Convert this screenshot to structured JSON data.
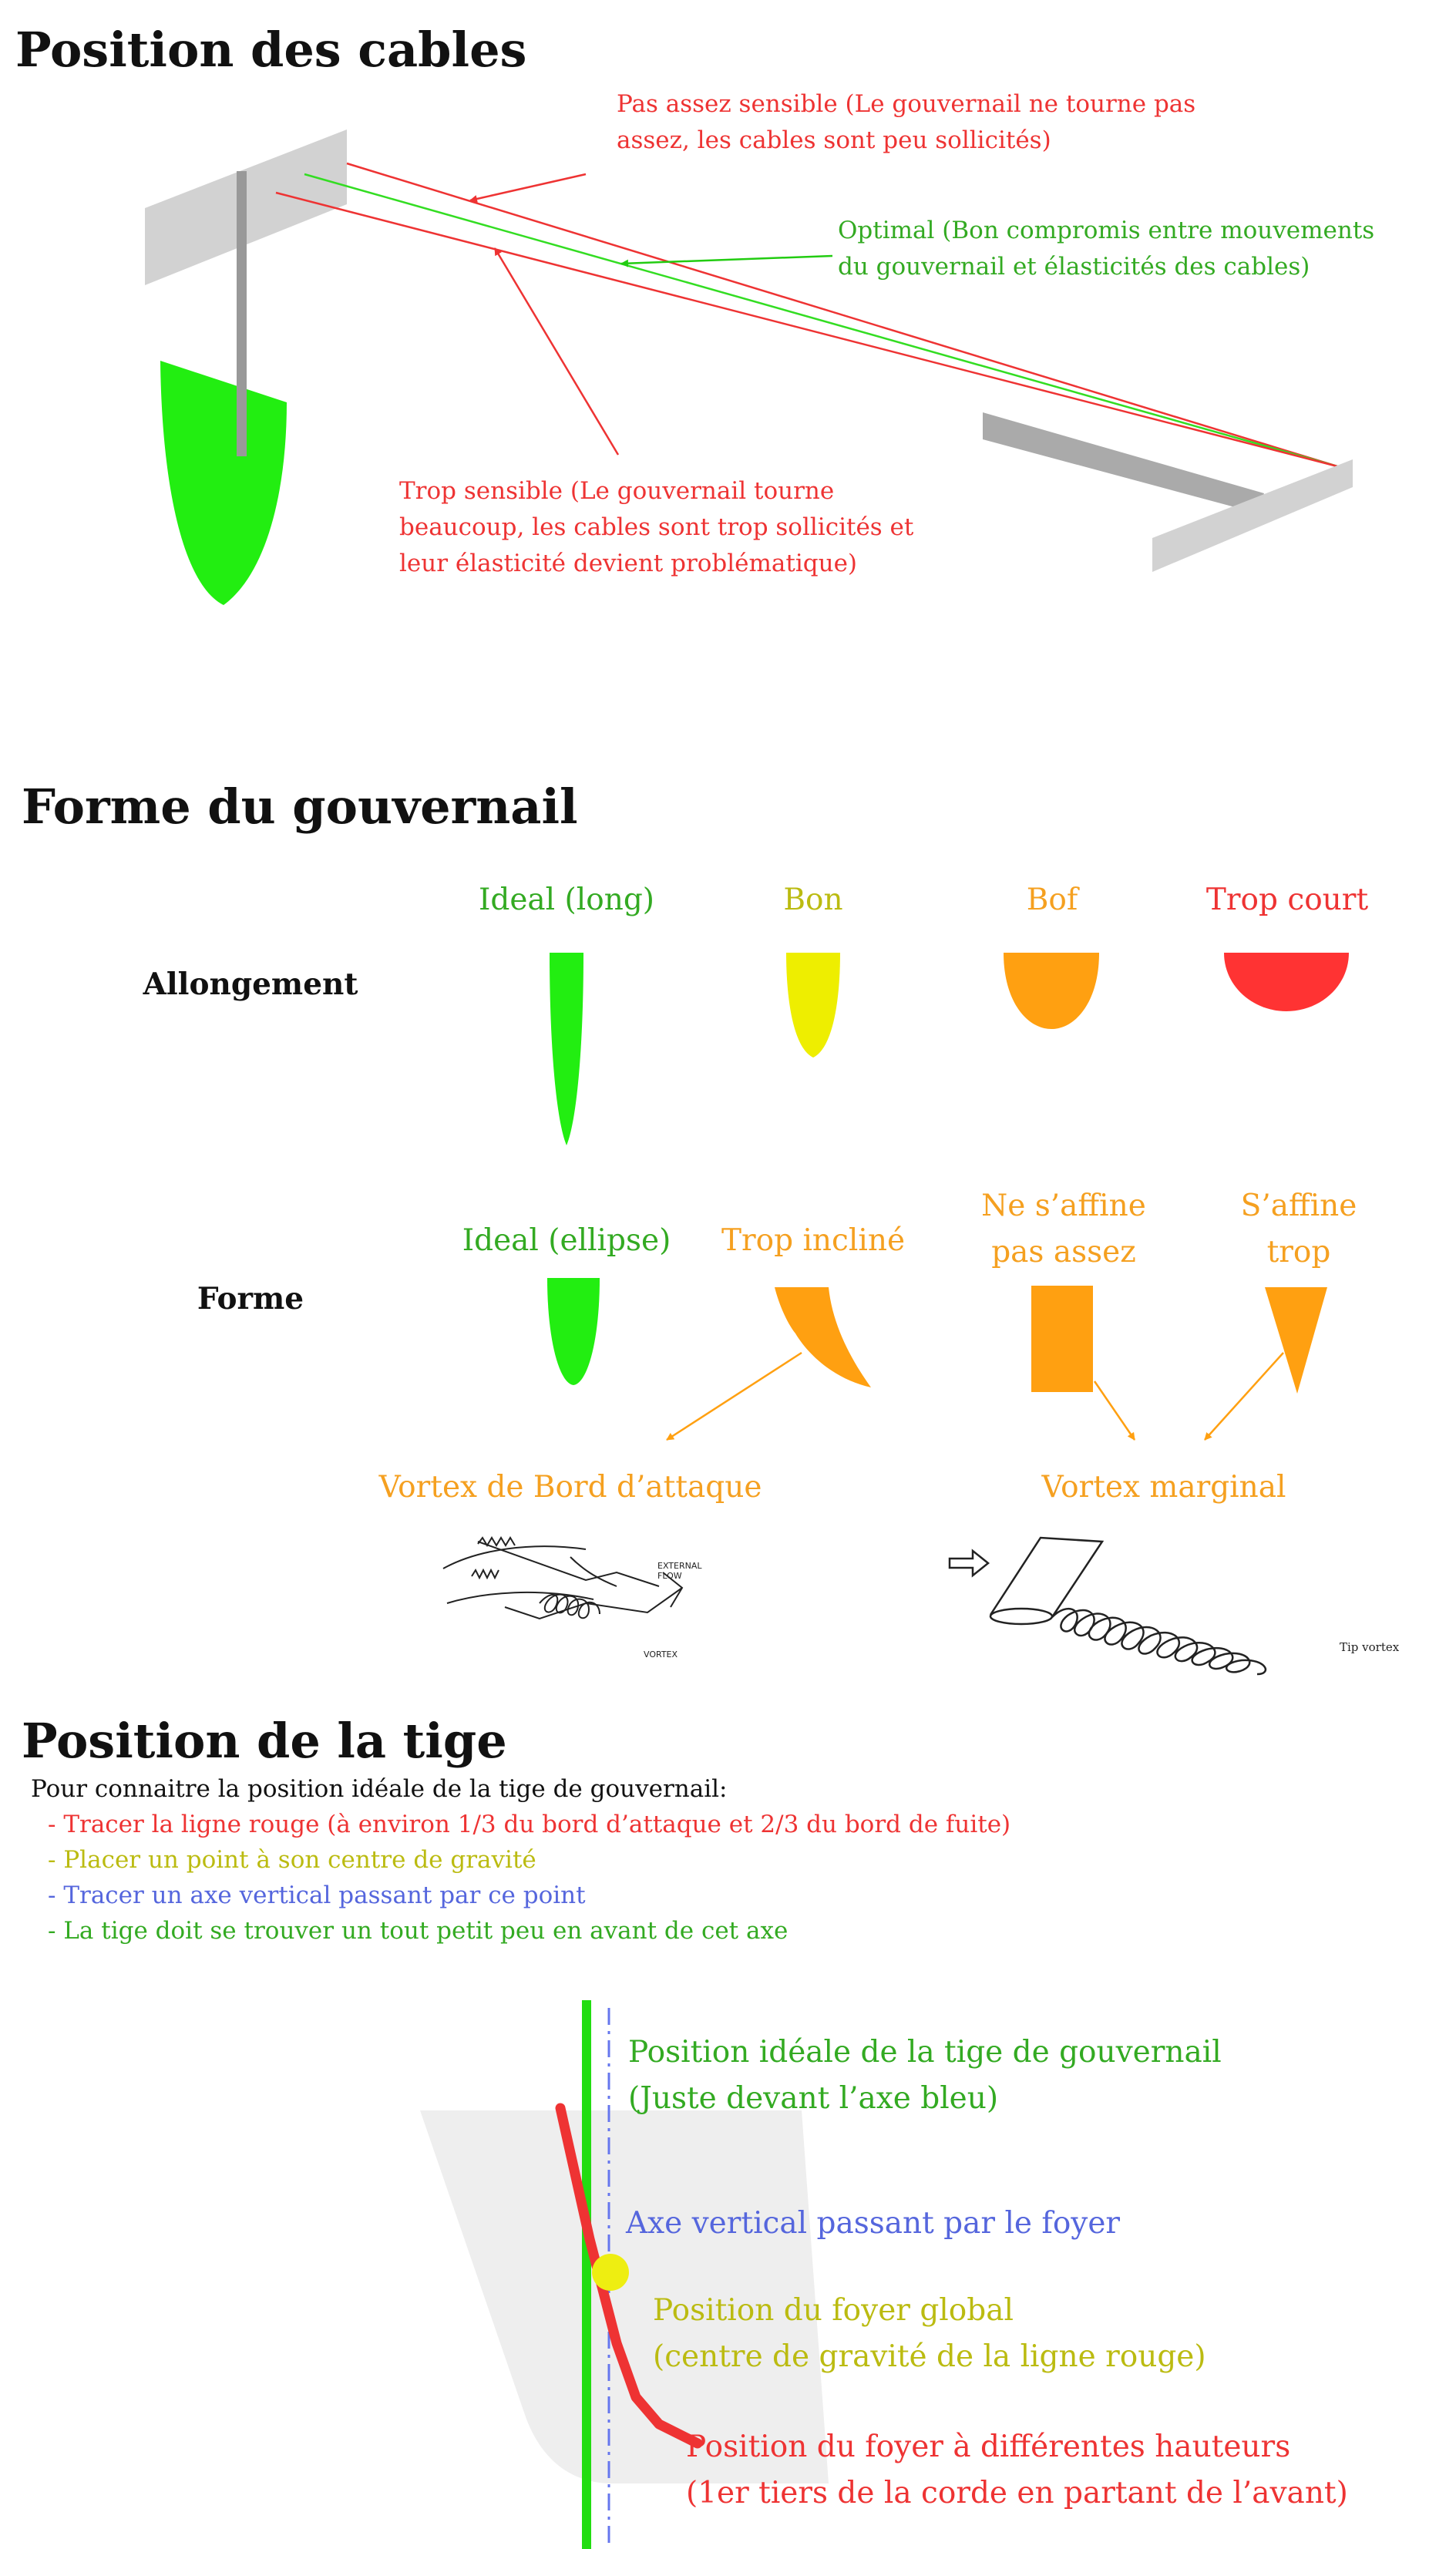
{
  "colors": {
    "green": "#22dd11",
    "green_text": "#33aa22",
    "yellow": "#eeee00",
    "yellow_text": "#bbbb11",
    "orange": "#ffa011",
    "orange_text": "#f5a020",
    "red": "#ff3333",
    "red_text": "#ee3333",
    "blue_text": "#5566dd",
    "grey": "#999999",
    "light_grey": "#d0d0d0"
  },
  "section1": {
    "title": "Position des cables",
    "ann_weak": {
      "line1": "Pas assez sensible (Le gouvernail ne tourne pas",
      "line2": "assez, les cables sont peu sollicités)"
    },
    "ann_optimal": {
      "line1": "Optimal (Bon compromis entre mouvements",
      "line2": "du gouvernail et élasticités des cables)"
    },
    "ann_sensitive": {
      "line1": "Trop sensible (Le gouvernail tourne",
      "line2": "beaucoup, les cables sont trop sollicités et",
      "line3": "leur élasticité devient problématique)"
    }
  },
  "section2": {
    "title": "Forme du gouvernail",
    "row1_label": "Allongement",
    "row1": [
      {
        "label": "Ideal (long)"
      },
      {
        "label": "Bon"
      },
      {
        "label": "Bof"
      },
      {
        "label": "Trop court"
      }
    ],
    "row2_label": "Forme",
    "row2": [
      {
        "line1": "Ideal (ellipse)",
        "line2": ""
      },
      {
        "line1": "Trop incliné",
        "line2": ""
      },
      {
        "line1": "Ne s’affine",
        "line2": "pas assez"
      },
      {
        "line1": "S’affine",
        "line2": "trop"
      }
    ],
    "vortex_leading": "Vortex de Bord d’attaque",
    "vortex_tip": "Vortex marginal",
    "sketch1": {
      "external_flow_1": "EXTERNAL",
      "external_flow_2": "FLOW",
      "vortex": "VORTEX"
    },
    "sketch2": {
      "tip_vortex": "Tip vortex"
    }
  },
  "section3": {
    "title": "Position de la tige",
    "intro": "Pour connaitre la position idéale de la tige de gouvernail:",
    "steps": [
      "- Tracer la ligne rouge (à environ 1/3 du bord d’attaque et 2/3 du bord de fuite)",
      "- Placer un point à son centre de gravité",
      "- Tracer un axe vertical passant par ce point",
      "- La tige doit se trouver un tout petit peu en avant de cet axe"
    ],
    "callout_ideal": {
      "line1": "Position idéale de la tige de gouvernail",
      "line2": "(Juste devant l’axe bleu)"
    },
    "callout_axis": "Axe vertical passant par le foyer",
    "callout_focus": {
      "line1": "Position du foyer global",
      "line2": "(centre de gravité de la ligne rouge)"
    },
    "callout_heights": {
      "line1": "Position du foyer à différentes hauteurs",
      "line2": "(1er tiers de la corde en partant de l’avant)"
    }
  }
}
